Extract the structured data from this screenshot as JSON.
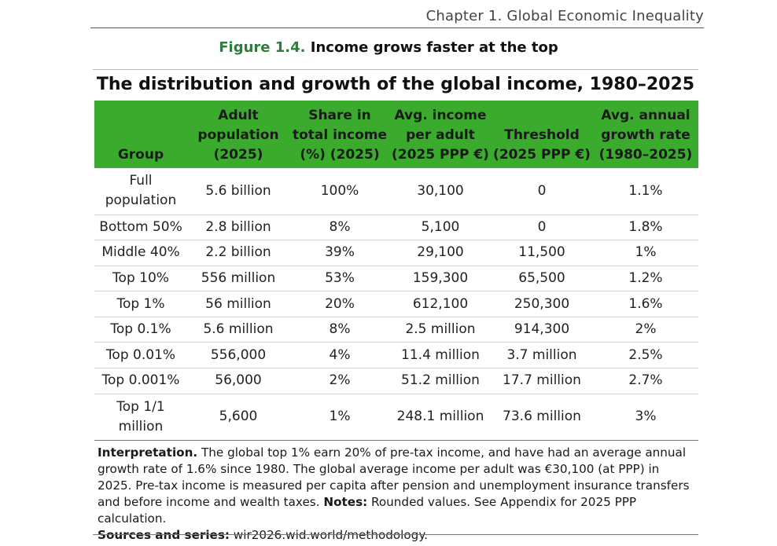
{
  "header": {
    "chapter": "Chapter 1.  Global Economic Inequality"
  },
  "figure": {
    "number": "Figure 1.4.",
    "title": "Income grows faster at the top"
  },
  "table": {
    "title": "The distribution and growth of the global income, 1980–2025",
    "columns": [
      {
        "lines": [
          "Group"
        ]
      },
      {
        "lines": [
          "Adult",
          "population",
          "(2025)"
        ]
      },
      {
        "lines": [
          "Share in",
          "total income",
          "(%) (2025)"
        ]
      },
      {
        "lines": [
          "Avg. income",
          "per adult",
          "(2025 PPP €)"
        ]
      },
      {
        "lines": [
          "Threshold",
          "(2025 PPP €)"
        ]
      },
      {
        "lines": [
          "Avg. annual",
          "growth rate",
          "(1980–2025)"
        ]
      }
    ],
    "rows": [
      {
        "group": "Full population",
        "population": "5.6 billion",
        "share": "100%",
        "avg_income": "30,100",
        "threshold": "0",
        "growth": "1.1%"
      },
      {
        "group": "Bottom 50%",
        "population": "2.8 billion",
        "share": "8%",
        "avg_income": "5,100",
        "threshold": "0",
        "growth": "1.8%"
      },
      {
        "group": "Middle 40%",
        "population": "2.2 billion",
        "share": "39%",
        "avg_income": "29,100",
        "threshold": "11,500",
        "growth": "1%"
      },
      {
        "group": "Top 10%",
        "population": "556 million",
        "share": "53%",
        "avg_income": "159,300",
        "threshold": "65,500",
        "growth": "1.2%"
      },
      {
        "group": "Top 1%",
        "population": "56 million",
        "share": "20%",
        "avg_income": "612,100",
        "threshold": "250,300",
        "growth": "1.6%"
      },
      {
        "group": "Top 0.1%",
        "population": "5.6 million",
        "share": "8%",
        "avg_income": "2.5 million",
        "threshold": "914,300",
        "growth": "2%"
      },
      {
        "group": "Top 0.01%",
        "population": "556,000",
        "share": "4%",
        "avg_income": "11.4 million",
        "threshold": "3.7 million",
        "growth": "2.5%"
      },
      {
        "group": "Top 0.001%",
        "population": "56,000",
        "share": "2%",
        "avg_income": "51.2 million",
        "threshold": "17.7 million",
        "growth": "2.7%"
      },
      {
        "group": "Top 1/1 million",
        "population": "5,600",
        "share": "1%",
        "avg_income": "248.1 million",
        "threshold": "73.6 million",
        "growth": "3%"
      }
    ],
    "header_color": "#3aab2c"
  },
  "notes": {
    "interpretation_label": "Interpretation.",
    "interpretation_text": " The global top 1% earn 20% of pre-tax income, and have had an average annual growth rate of 1.6% since 1980. The global average income per adult was €30,100 (at PPP) in 2025. Pre-tax income is measured per capita after pension and unemployment insurance transfers and before income and wealth taxes. ",
    "notes_label": "Notes:",
    "notes_text": " Rounded values. See Appendix for 2025 PPP calculation.",
    "sources_label": "Sources and series:",
    "sources_text": " wir2026.wid.world/methodology."
  }
}
